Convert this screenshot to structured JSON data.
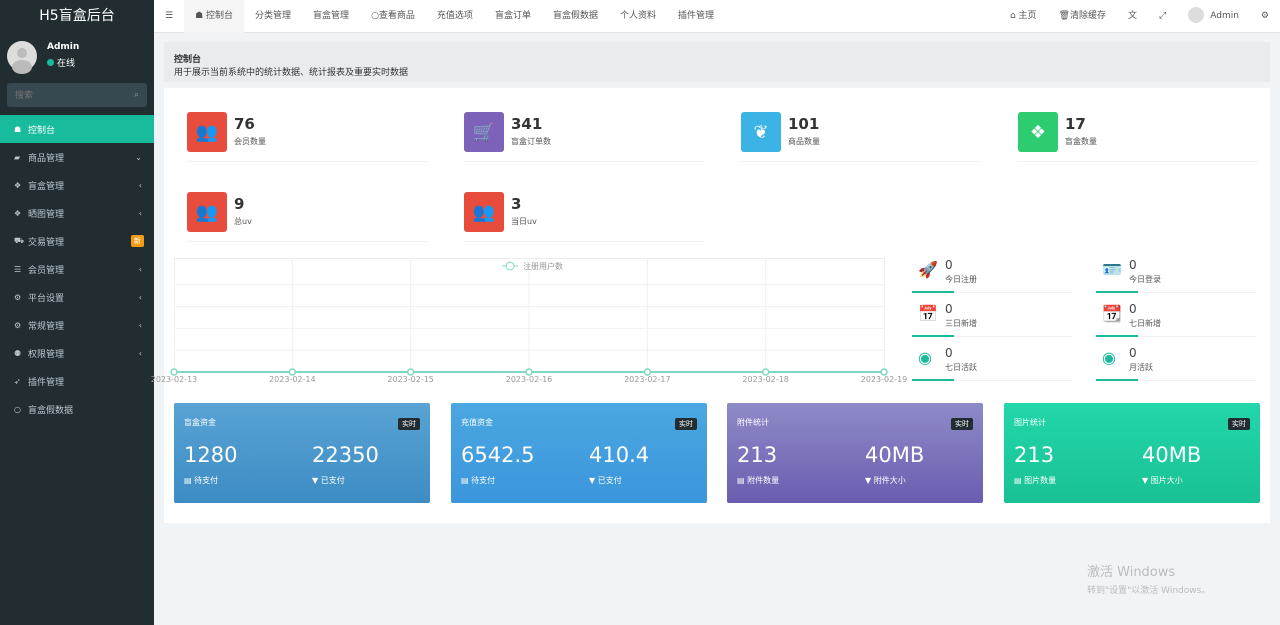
{
  "sidebar": {
    "logo": "H5盲盒后台",
    "user": "Admin",
    "status": "在线",
    "search_placeholder": "搜索",
    "items": [
      {
        "label": "控制台",
        "icon": "dashboard-icon",
        "glyph": "☗",
        "arrow": ""
      },
      {
        "label": "商品管理",
        "icon": "shopping-bag-icon",
        "glyph": "▰",
        "arrow": "⌄"
      },
      {
        "label": "盲盒管理",
        "icon": "dropbox-icon",
        "glyph": "❖",
        "arrow": "‹"
      },
      {
        "label": "晒图管理",
        "icon": "dropbox-icon",
        "glyph": "❖",
        "arrow": "‹"
      },
      {
        "label": "交易管理",
        "icon": "cart-icon",
        "glyph": "⛟",
        "arrow": "",
        "badge": "新"
      },
      {
        "label": "会员管理",
        "icon": "list-icon",
        "glyph": "☰",
        "arrow": "‹"
      },
      {
        "label": "平台设置",
        "icon": "cogs-icon",
        "glyph": "⚙",
        "arrow": "‹"
      },
      {
        "label": "常规管理",
        "icon": "cogs-icon",
        "glyph": "⚙",
        "arrow": "‹"
      },
      {
        "label": "权限管理",
        "icon": "group-icon",
        "glyph": "⚉",
        "arrow": "‹"
      },
      {
        "label": "插件管理",
        "icon": "rocket-icon",
        "glyph": "➶",
        "arrow": ""
      },
      {
        "label": "盲盒假数据",
        "icon": "circle-icon",
        "glyph": "○",
        "arrow": ""
      }
    ]
  },
  "topbar": {
    "tabs": [
      "控制台",
      "分类管理",
      "盲盒管理",
      "○查看商品",
      "充值选项",
      "盲盒订单",
      "盲盒假数据",
      "个人资料",
      "插件管理"
    ],
    "home": "主页",
    "clear_cache": "清除缓存",
    "user": "Admin"
  },
  "header": {
    "title": "控制台",
    "desc": "用于展示当前系统中的统计数据、统计报表及重要实时数据"
  },
  "stats": [
    {
      "value": "76",
      "label": "会员数量",
      "color": "#e74c3c",
      "icon": "users-icon",
      "glyph": "👥"
    },
    {
      "value": "341",
      "label": "盲盒订单数",
      "color": "#7c62b8",
      "icon": "cart-icon",
      "glyph": "🛒"
    },
    {
      "value": "101",
      "label": "商品数量",
      "color": "#3bb4e5",
      "icon": "leaf-icon",
      "glyph": "❦"
    },
    {
      "value": "17",
      "label": "盲盒数量",
      "color": "#2ecc71",
      "icon": "dropbox-icon",
      "glyph": "❖"
    },
    {
      "value": "9",
      "label": "总uv",
      "color": "#e74c3c",
      "icon": "users-icon",
      "glyph": "👥"
    },
    {
      "value": "3",
      "label": "当日uv",
      "color": "#e74c3c",
      "icon": "users-icon",
      "glyph": "👥"
    }
  ],
  "chart_data": {
    "type": "line",
    "legend": "注册用户数",
    "categories": [
      "2023-02-13",
      "2023-02-14",
      "2023-02-15",
      "2023-02-16",
      "2023-02-17",
      "2023-02-18",
      "2023-02-19"
    ],
    "values": [
      0,
      0,
      0,
      0,
      0,
      0,
      0
    ],
    "color": "#7ed8c0",
    "grid": true,
    "legend_position": "top"
  },
  "right_stats": [
    {
      "value": "0",
      "label": "今日注册",
      "icon": "rocket-icon",
      "glyph": "🚀"
    },
    {
      "value": "0",
      "label": "今日登录",
      "icon": "id-card-icon",
      "glyph": "🪪"
    },
    {
      "value": "0",
      "label": "三日新增",
      "icon": "calendar-icon",
      "glyph": "📅"
    },
    {
      "value": "0",
      "label": "七日新增",
      "icon": "calendar-plus-icon",
      "glyph": "📆"
    },
    {
      "value": "0",
      "label": "七日活跃",
      "icon": "user-circle-icon",
      "glyph": "◉"
    },
    {
      "value": "0",
      "label": "月活跃",
      "icon": "user-circle-icon",
      "glyph": "◉"
    }
  ],
  "cards": [
    {
      "title": "盲盒资金",
      "tag": "实时",
      "v1": "1280",
      "l1": "待支付",
      "v2": "22350",
      "l2": "已支付",
      "bg": "linear-gradient(#59a3d4,#3d8cc4)"
    },
    {
      "title": "充值资金",
      "tag": "实时",
      "v1": "6542.5",
      "l1": "待支付",
      "v2": "410.4",
      "l2": "已支付",
      "bg": "linear-gradient(#4aa7e0,#3b96dc)"
    },
    {
      "title": "附件统计",
      "tag": "实时",
      "v1": "213",
      "l1": "附件数量",
      "v2": "40MB",
      "l2": "附件大小",
      "bg": "linear-gradient(#8e8bc8,#6a5db0)"
    },
    {
      "title": "图片统计",
      "tag": "实时",
      "v1": "213",
      "l1": "图片数量",
      "v2": "40MB",
      "l2": "图片大小",
      "bg": "linear-gradient(#22d7ab,#19c194)"
    }
  ],
  "watermark": {
    "line1": "激活 Windows",
    "line2": "转到\"设置\"以激活 Windows。"
  }
}
